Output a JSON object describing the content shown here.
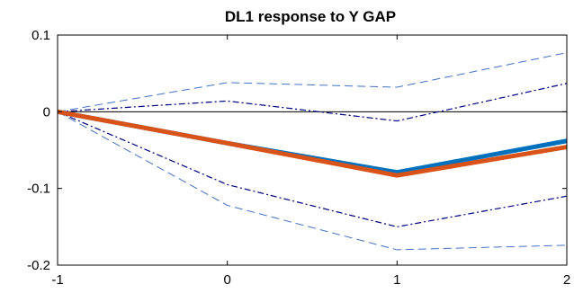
{
  "chart_data": {
    "type": "line",
    "title": "DL1 response to Y GAP",
    "xlabel": "",
    "ylabel": "",
    "xlim": [
      -1,
      2
    ],
    "ylim": [
      -0.2,
      0.1
    ],
    "xticks": [
      -1,
      0,
      1,
      2
    ],
    "xtick_labels": [
      "-1",
      "0",
      "1",
      "2"
    ],
    "yticks": [
      -0.2,
      -0.1,
      0,
      0.1
    ],
    "ytick_labels": [
      "-0.2",
      "-0.1",
      "0",
      "0.1"
    ],
    "grid": false,
    "legend": "none",
    "x": [
      -1,
      0,
      1,
      2
    ],
    "series": [
      {
        "style": "dashed",
        "color": "#4472c4",
        "values": [
          0,
          0.038,
          0.032,
          0.077
        ]
      },
      {
        "style": "dashdot",
        "color": "#000080",
        "values": [
          0,
          0.014,
          -0.012,
          0.037
        ]
      },
      {
        "style": "dashdot",
        "color": "#000080",
        "values": [
          0,
          -0.095,
          -0.15,
          -0.11
        ]
      },
      {
        "style": "dashed",
        "color": "#4472c4",
        "values": [
          0,
          -0.122,
          -0.18,
          -0.174
        ]
      },
      {
        "style": "thick",
        "color": "#0072bd",
        "values": [
          0,
          -0.041,
          -0.079,
          -0.038
        ]
      },
      {
        "style": "thick",
        "color": "#d95319",
        "values": [
          0,
          -0.041,
          -0.083,
          -0.046
        ]
      }
    ],
    "zero_line": {
      "value": 0,
      "color": "#000000"
    }
  }
}
